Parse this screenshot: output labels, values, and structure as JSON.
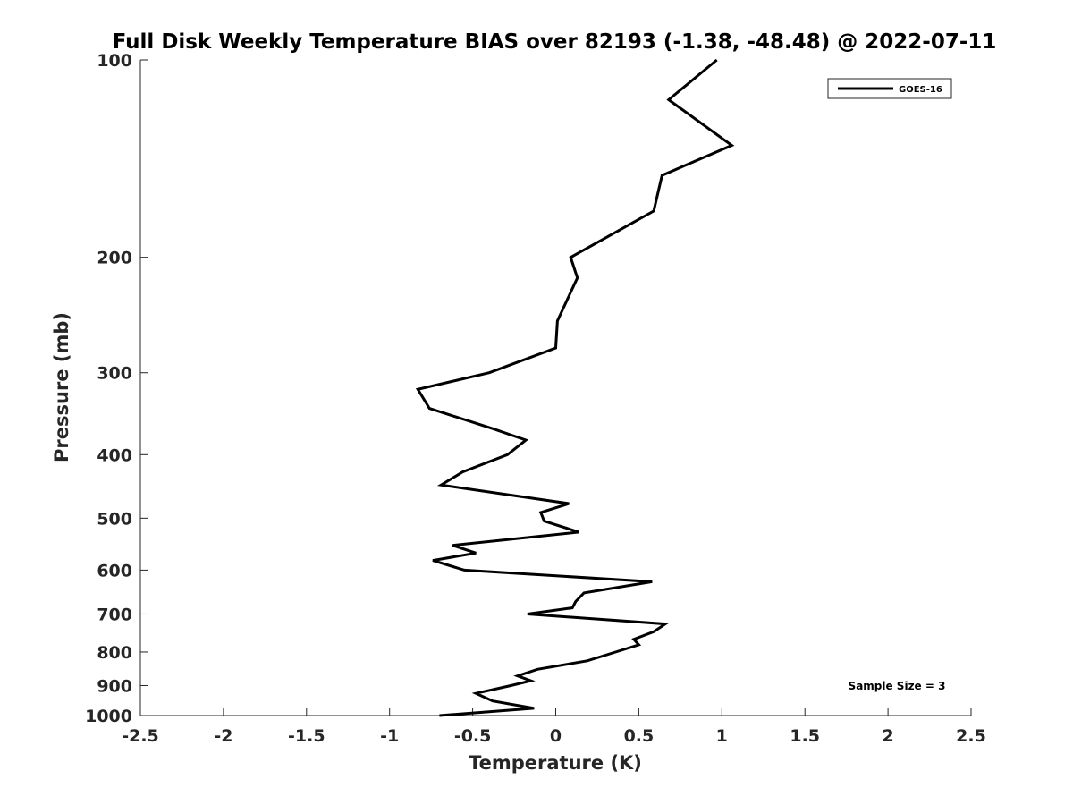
{
  "chart_data": {
    "type": "line",
    "title": "Full Disk Weekly Temperature BIAS over 82193 (-1.38, -48.48) @ 2022-07-11",
    "xlabel": "Temperature (K)",
    "ylabel": "Pressure (mb)",
    "xlim": [
      -2.5,
      2.5
    ],
    "ylim": [
      1000,
      100
    ],
    "yscale": "log",
    "y_reversed": true,
    "grid": false,
    "legend_position": "top-right",
    "xticks": [
      -2.5,
      -2,
      -1.5,
      -1,
      -0.5,
      0,
      0.5,
      1,
      1.5,
      2,
      2.5
    ],
    "xtick_labels": [
      "-2.5",
      "-2",
      "-1.5",
      "-1",
      "-0.5",
      "0",
      "0.5",
      "1",
      "1.5",
      "2",
      "2.5"
    ],
    "yticks": [
      100,
      200,
      300,
      400,
      500,
      600,
      700,
      800,
      900,
      1000
    ],
    "ytick_labels": [
      "100",
      "200",
      "300",
      "400",
      "500",
      "600",
      "700",
      "800",
      "900",
      "1000"
    ],
    "series": [
      {
        "name": "GOES-16",
        "color": "#000000",
        "points": [
          {
            "t": 0.97,
            "p": 100
          },
          {
            "t": 0.68,
            "p": 115
          },
          {
            "t": 1.06,
            "p": 135
          },
          {
            "t": 0.64,
            "p": 150
          },
          {
            "t": 0.59,
            "p": 170
          },
          {
            "t": 0.09,
            "p": 200
          },
          {
            "t": 0.13,
            "p": 215
          },
          {
            "t": 0.01,
            "p": 250
          },
          {
            "t": 0.0,
            "p": 275
          },
          {
            "t": -0.4,
            "p": 300
          },
          {
            "t": -0.83,
            "p": 318
          },
          {
            "t": -0.76,
            "p": 340
          },
          {
            "t": -0.38,
            "p": 365
          },
          {
            "t": -0.18,
            "p": 380
          },
          {
            "t": -0.29,
            "p": 400
          },
          {
            "t": -0.56,
            "p": 425
          },
          {
            "t": -0.69,
            "p": 445
          },
          {
            "t": 0.08,
            "p": 475
          },
          {
            "t": -0.09,
            "p": 490
          },
          {
            "t": -0.07,
            "p": 505
          },
          {
            "t": 0.14,
            "p": 525
          },
          {
            "t": -0.62,
            "p": 550
          },
          {
            "t": -0.48,
            "p": 565
          },
          {
            "t": -0.74,
            "p": 580
          },
          {
            "t": -0.55,
            "p": 600
          },
          {
            "t": 0.58,
            "p": 625
          },
          {
            "t": 0.17,
            "p": 650
          },
          {
            "t": 0.12,
            "p": 670
          },
          {
            "t": 0.1,
            "p": 685
          },
          {
            "t": -0.17,
            "p": 700
          },
          {
            "t": 0.66,
            "p": 725
          },
          {
            "t": 0.59,
            "p": 745
          },
          {
            "t": 0.47,
            "p": 765
          },
          {
            "t": 0.5,
            "p": 780
          },
          {
            "t": 0.36,
            "p": 800
          },
          {
            "t": 0.19,
            "p": 825
          },
          {
            "t": -0.11,
            "p": 850
          },
          {
            "t": -0.23,
            "p": 870
          },
          {
            "t": -0.15,
            "p": 885
          },
          {
            "t": -0.27,
            "p": 900
          },
          {
            "t": -0.48,
            "p": 925
          },
          {
            "t": -0.38,
            "p": 950
          },
          {
            "t": -0.13,
            "p": 975
          },
          {
            "t": -0.7,
            "p": 1000
          }
        ]
      }
    ],
    "annotations": [
      "Sample Size = 3"
    ]
  }
}
